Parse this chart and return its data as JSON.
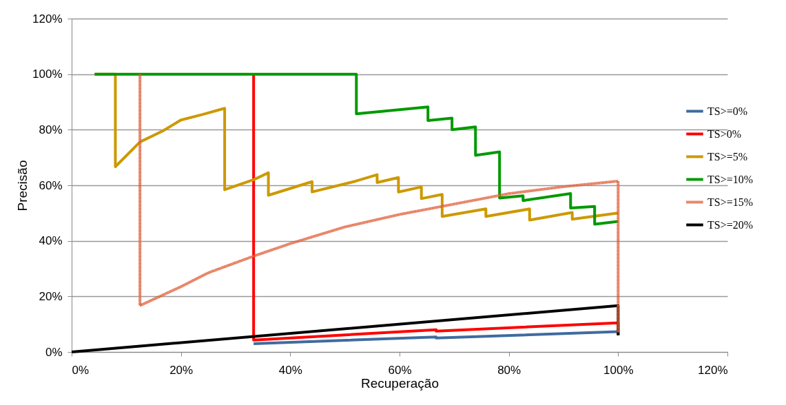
{
  "chart_data": {
    "type": "line",
    "xlabel": "Recuperação",
    "ylabel": "Precisão",
    "xlim": [
      0,
      120
    ],
    "ylim": [
      0,
      120
    ],
    "xticks": [
      {
        "value": 0,
        "label": "0%"
      },
      {
        "value": 20,
        "label": "20%"
      },
      {
        "value": 40,
        "label": "40%"
      },
      {
        "value": 60,
        "label": "60%"
      },
      {
        "value": 80,
        "label": "80%"
      },
      {
        "value": 100,
        "label": "100%"
      },
      {
        "value": 120,
        "label": "120%"
      }
    ],
    "yticks": [
      {
        "value": 0,
        "label": "0%"
      },
      {
        "value": 20,
        "label": "20%"
      },
      {
        "value": 40,
        "label": "40%"
      },
      {
        "value": 60,
        "label": "60%"
      },
      {
        "value": 80,
        "label": "80%"
      },
      {
        "value": 100,
        "label": "100%"
      },
      {
        "value": 120,
        "label": "120%"
      }
    ],
    "grid": "y",
    "legend": "right",
    "marker": "none",
    "series": [
      {
        "name": "TS>=0%",
        "color": "#3f6b9f",
        "x": [
          33.3,
          66.7,
          66.7,
          100
        ],
        "values": [
          3.0,
          5.4,
          5.0,
          7.3
        ]
      },
      {
        "name": "TS>0%",
        "color": "#ff0000",
        "x": [
          33.3,
          33.3,
          66.7,
          66.7,
          100,
          100
        ],
        "values": [
          100,
          4.3,
          8.0,
          7.5,
          10.5,
          6
        ]
      },
      {
        "name": "TS>=5%",
        "color": "#cc9900",
        "x": [
          4.2,
          8.0,
          8.0,
          12.5,
          16.7,
          20,
          24,
          28,
          28,
          33.3,
          36,
          36,
          44,
          44,
          52,
          55.9,
          55.9,
          59.8,
          59.8,
          64,
          64,
          67.8,
          67.8,
          75.8,
          75.8,
          83.8,
          83.8,
          91.6,
          91.6,
          100
        ],
        "values": [
          100,
          100,
          66.7,
          75.6,
          79.6,
          83.5,
          85.5,
          87.7,
          58.4,
          62,
          64.5,
          56.4,
          61.3,
          57.6,
          61.5,
          63.8,
          61,
          62.8,
          57.6,
          59.4,
          55.2,
          56.7,
          48.8,
          51.5,
          48.8,
          51.5,
          47.5,
          50.2,
          47.8,
          50
        ]
      },
      {
        "name": "TS>=10%",
        "color": "#009900",
        "x": [
          4.2,
          52.1,
          52.1,
          65.2,
          65.2,
          69.6,
          69.6,
          73.9,
          73.9,
          78.3,
          78.3,
          82.6,
          82.6,
          91.3,
          91.3,
          95.7,
          95.7,
          100
        ],
        "values": [
          100,
          100,
          85.7,
          88.2,
          83.3,
          84.2,
          80,
          81,
          70.8,
          72,
          55.4,
          56.2,
          54.5,
          57,
          51.8,
          52.4,
          46,
          47
        ]
      },
      {
        "name": "TS>=15%",
        "color": "#e0603a",
        "line_style": "dotted",
        "x": [
          12.5,
          12.5,
          20,
          25,
          33.3,
          40,
          50,
          60,
          66.7,
          80,
          90,
          100,
          100
        ],
        "values": [
          100,
          16.7,
          23.5,
          28.5,
          34.5,
          39,
          45,
          49.5,
          52,
          57,
          59.5,
          61.5,
          7
        ]
      },
      {
        "name": "TS>=20%",
        "color": "#000000",
        "x": [
          0,
          100,
          100
        ],
        "values": [
          0,
          16.7,
          6
        ]
      }
    ]
  }
}
